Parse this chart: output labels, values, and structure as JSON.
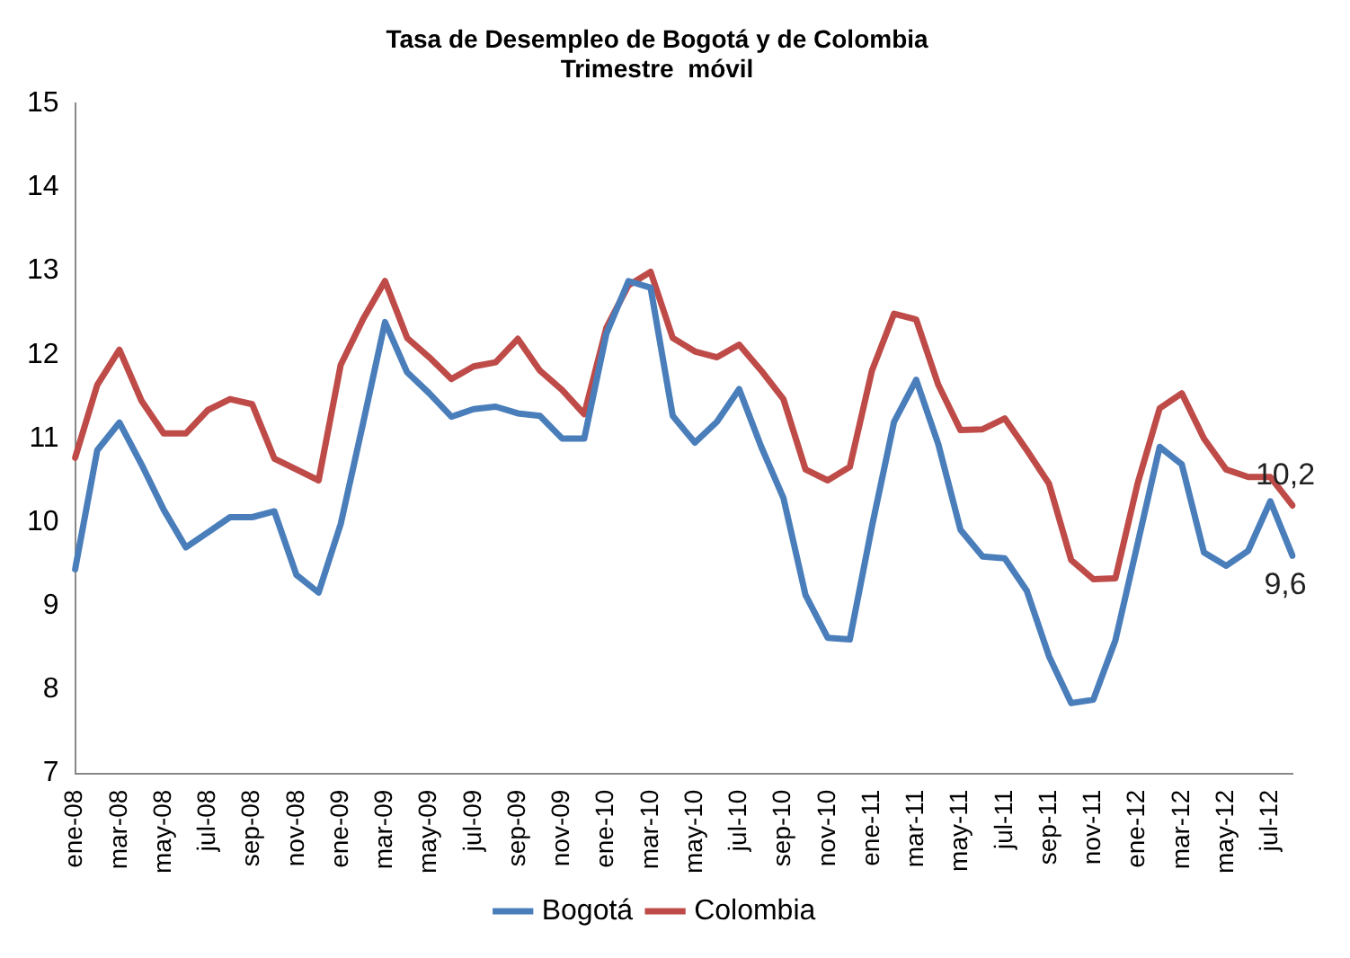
{
  "chart_data": {
    "type": "line",
    "title": "Tasa de Desempleo de Bogotá y de Colombia",
    "subtitle": "Trimestre  móvil",
    "categories": [
      "ene-08",
      null,
      "mar-08",
      null,
      "may-08",
      null,
      "jul-08",
      null,
      "sep-08",
      null,
      "nov-08",
      null,
      "ene-09",
      null,
      "mar-09",
      null,
      "may-09",
      null,
      "jul-09",
      null,
      "sep-09",
      null,
      "nov-09",
      null,
      "ene-10",
      null,
      "mar-10",
      null,
      "may-10",
      null,
      "jul-10",
      null,
      "sep-10",
      null,
      "nov-10",
      null,
      "ene-11",
      null,
      "mar-11",
      null,
      "may-11",
      null,
      "jul-11",
      null,
      "sep-11",
      null,
      "nov-11",
      null,
      "ene-12",
      null,
      "mar-12",
      null,
      "may-12",
      null,
      "jul-12",
      null
    ],
    "series": [
      {
        "name": "Bogotá",
        "color": "#4a7ebb",
        "values": [
          9.44,
          10.86,
          11.19,
          10.69,
          10.15,
          9.7,
          9.88,
          10.06,
          10.06,
          10.13,
          9.37,
          9.16,
          9.98,
          11.17,
          12.39,
          11.79,
          11.54,
          11.26,
          11.35,
          11.38,
          11.3,
          11.27,
          11.0,
          11.0,
          12.25,
          12.88,
          12.8,
          11.27,
          10.95,
          11.2,
          11.59,
          10.9,
          10.29,
          9.13,
          8.62,
          8.6,
          9.95,
          11.2,
          11.7,
          10.93,
          9.91,
          9.59,
          9.57,
          9.18,
          8.4,
          7.84,
          7.88,
          8.59,
          9.74,
          10.9,
          10.69,
          9.64,
          9.48,
          9.66,
          10.25,
          9.6
        ],
        "value_labels": [
          null,
          null,
          null,
          null,
          null,
          null,
          null,
          null,
          null,
          null,
          null,
          null,
          null,
          null,
          null,
          null,
          null,
          null,
          null,
          null,
          null,
          null,
          null,
          null,
          null,
          null,
          null,
          null,
          null,
          null,
          null,
          null,
          null,
          null,
          null,
          null,
          null,
          null,
          null,
          null,
          null,
          null,
          null,
          null,
          null,
          null,
          null,
          null,
          null,
          null,
          null,
          null,
          null,
          null,
          null,
          "9,6"
        ]
      },
      {
        "name": "Colombia",
        "color": "#be4b48",
        "values": [
          10.77,
          11.64,
          12.06,
          11.45,
          11.06,
          11.06,
          11.34,
          11.47,
          11.41,
          10.76,
          10.63,
          10.5,
          11.88,
          12.42,
          12.88,
          12.2,
          11.97,
          11.71,
          11.86,
          11.91,
          12.19,
          11.81,
          11.58,
          11.29,
          12.32,
          12.83,
          12.99,
          12.2,
          12.04,
          11.97,
          12.12,
          11.81,
          11.47,
          10.63,
          10.5,
          10.66,
          11.81,
          12.49,
          12.42,
          11.64,
          11.1,
          11.11,
          11.24,
          10.86,
          10.46,
          9.55,
          9.32,
          9.33,
          10.46,
          11.36,
          11.54,
          11.0,
          10.63,
          10.54,
          10.54,
          10.2
        ],
        "value_labels": [
          null,
          null,
          null,
          null,
          null,
          null,
          null,
          null,
          null,
          null,
          null,
          null,
          null,
          null,
          null,
          null,
          null,
          null,
          null,
          null,
          null,
          null,
          null,
          null,
          null,
          null,
          null,
          null,
          null,
          null,
          null,
          null,
          null,
          null,
          null,
          null,
          null,
          null,
          null,
          null,
          null,
          null,
          null,
          null,
          null,
          null,
          null,
          null,
          null,
          null,
          null,
          null,
          null,
          null,
          null,
          "10,2"
        ]
      }
    ],
    "ylim": [
      7,
      15
    ],
    "yticks": [
      7,
      8,
      9,
      10,
      11,
      12,
      13,
      14,
      15
    ],
    "grid": false,
    "legend": "bottom",
    "marker": "none",
    "line_style": "solid"
  }
}
